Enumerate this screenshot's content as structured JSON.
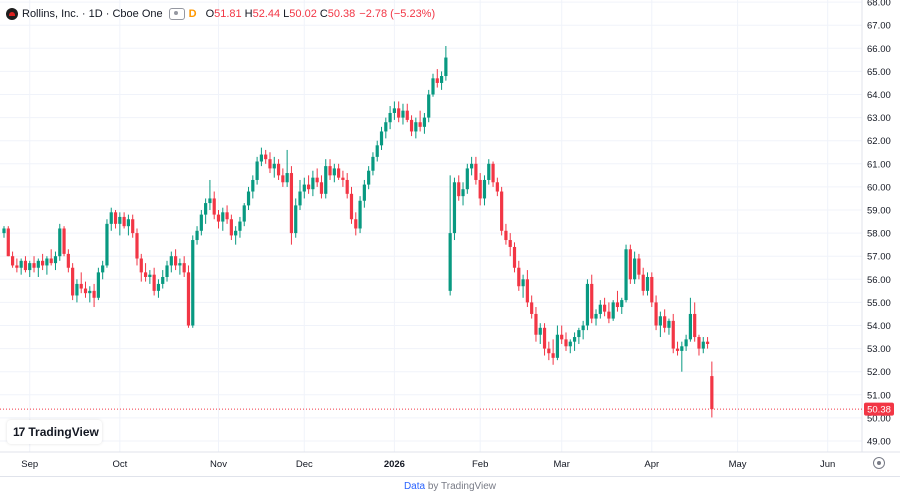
{
  "header": {
    "symbol": "Rollins, Inc. · 1D · Cboe One",
    "badge": "D",
    "o_label": "O",
    "o_value": "51.81",
    "h_label": "H",
    "h_value": "52.44",
    "l_label": "L",
    "l_value": "50.02",
    "c_label": "C",
    "c_value": "50.38",
    "change": "−2.78 (−5.23%)"
  },
  "logo": {
    "mark": "17",
    "text": "TradingView"
  },
  "footer": {
    "data_link": "Data",
    "by_text": "by TradingView"
  },
  "colors": {
    "up": "#089981",
    "down": "#f23645",
    "grid": "#f0f3fa",
    "axis_text": "#131722",
    "last_price_bg": "#f23645"
  },
  "chart_data": {
    "type": "candlestick",
    "y_ticks": [
      "49.00",
      "50.00",
      "51.00",
      "52.00",
      "53.00",
      "54.00",
      "55.00",
      "56.00",
      "57.00",
      "58.00",
      "59.00",
      "60.00",
      "61.00",
      "62.00",
      "63.00",
      "64.00",
      "65.00",
      "66.00",
      "67.00",
      "68.00"
    ],
    "ylim": [
      48.8,
      68.2
    ],
    "x_ticks": [
      {
        "label": "Sep",
        "index": 6
      },
      {
        "label": "Oct",
        "index": 27
      },
      {
        "label": "Nov",
        "index": 50
      },
      {
        "label": "Dec",
        "index": 70
      },
      {
        "label": "2026",
        "index": 91
      },
      {
        "label": "Feb",
        "index": 111
      },
      {
        "label": "Mar",
        "index": 130
      },
      {
        "label": "Apr",
        "index": 151
      },
      {
        "label": "May",
        "index": 171
      },
      {
        "label": "Jun",
        "index": 192
      }
    ],
    "last_price": "50.38",
    "last_close": 50.38,
    "candles": [
      [
        58.0,
        58.3,
        57.8,
        58.2
      ],
      [
        58.2,
        58.3,
        57.0,
        57.0
      ],
      [
        57.0,
        57.2,
        56.5,
        56.6
      ],
      [
        56.6,
        56.9,
        56.3,
        56.5
      ],
      [
        56.5,
        56.9,
        56.2,
        56.8
      ],
      [
        56.8,
        57.0,
        56.3,
        56.4
      ],
      [
        56.4,
        56.8,
        56.1,
        56.7
      ],
      [
        56.7,
        57.0,
        56.3,
        56.5
      ],
      [
        56.5,
        56.9,
        56.1,
        56.8
      ],
      [
        56.8,
        57.1,
        56.4,
        56.6
      ],
      [
        56.6,
        57.0,
        56.2,
        56.9
      ],
      [
        56.9,
        57.3,
        56.6,
        56.7
      ],
      [
        56.7,
        57.2,
        56.4,
        57.0
      ],
      [
        57.0,
        58.4,
        56.8,
        58.2
      ],
      [
        58.2,
        58.3,
        57.0,
        57.1
      ],
      [
        57.1,
        57.3,
        56.3,
        56.5
      ],
      [
        56.5,
        56.7,
        55.1,
        55.3
      ],
      [
        55.3,
        56.0,
        55.0,
        55.8
      ],
      [
        55.8,
        56.3,
        55.4,
        55.6
      ],
      [
        55.6,
        55.9,
        55.2,
        55.4
      ],
      [
        55.4,
        55.7,
        55.0,
        55.5
      ],
      [
        55.5,
        55.8,
        54.8,
        55.2
      ],
      [
        55.2,
        56.5,
        55.1,
        56.3
      ],
      [
        56.3,
        56.8,
        56.0,
        56.6
      ],
      [
        56.6,
        58.6,
        56.5,
        58.4
      ],
      [
        58.4,
        59.1,
        58.1,
        58.9
      ],
      [
        58.9,
        59.0,
        58.2,
        58.4
      ],
      [
        58.4,
        58.9,
        57.9,
        58.7
      ],
      [
        58.7,
        58.9,
        58.2,
        58.3
      ],
      [
        58.3,
        58.8,
        57.9,
        58.6
      ],
      [
        58.6,
        58.8,
        57.8,
        58.0
      ],
      [
        58.0,
        58.2,
        56.6,
        56.9
      ],
      [
        56.9,
        57.1,
        55.9,
        56.3
      ],
      [
        56.3,
        56.7,
        55.9,
        56.1
      ],
      [
        56.1,
        56.4,
        55.8,
        56.2
      ],
      [
        56.2,
        56.5,
        55.3,
        55.5
      ],
      [
        55.5,
        56.0,
        55.2,
        55.8
      ],
      [
        55.8,
        56.4,
        55.6,
        56.1
      ],
      [
        56.1,
        56.8,
        55.9,
        56.6
      ],
      [
        56.6,
        57.2,
        56.3,
        57.0
      ],
      [
        57.0,
        57.3,
        56.4,
        56.6
      ],
      [
        56.6,
        56.9,
        56.2,
        56.7
      ],
      [
        56.7,
        57.0,
        56.1,
        56.3
      ],
      [
        56.3,
        56.6,
        53.9,
        54.0
      ],
      [
        54.0,
        57.9,
        53.9,
        57.7
      ],
      [
        57.7,
        58.3,
        57.5,
        58.1
      ],
      [
        58.1,
        59.0,
        57.9,
        58.8
      ],
      [
        58.8,
        59.5,
        58.4,
        59.3
      ],
      [
        59.3,
        60.3,
        59.0,
        59.5
      ],
      [
        59.5,
        59.8,
        58.6,
        58.8
      ],
      [
        58.8,
        59.0,
        58.2,
        58.5
      ],
      [
        58.5,
        59.1,
        58.1,
        58.9
      ],
      [
        58.9,
        59.2,
        58.4,
        58.6
      ],
      [
        58.6,
        58.8,
        57.7,
        57.9
      ],
      [
        57.9,
        58.3,
        57.5,
        58.1
      ],
      [
        58.1,
        58.7,
        57.8,
        58.5
      ],
      [
        58.5,
        59.3,
        58.3,
        59.2
      ],
      [
        59.2,
        60.0,
        59.0,
        59.8
      ],
      [
        59.8,
        60.5,
        59.5,
        60.3
      ],
      [
        60.3,
        61.3,
        60.1,
        61.1
      ],
      [
        61.1,
        61.7,
        60.9,
        61.4
      ],
      [
        61.4,
        61.6,
        61.0,
        61.2
      ],
      [
        61.2,
        61.5,
        60.6,
        60.8
      ],
      [
        60.8,
        61.3,
        60.4,
        61.0
      ],
      [
        61.0,
        61.2,
        60.3,
        60.5
      ],
      [
        60.5,
        60.8,
        60.0,
        60.2
      ],
      [
        60.2,
        61.6,
        60.0,
        60.6
      ],
      [
        60.6,
        60.9,
        57.5,
        58.0
      ],
      [
        58.0,
        59.5,
        57.8,
        59.2
      ],
      [
        59.2,
        60.3,
        59.0,
        59.8
      ],
      [
        59.8,
        60.4,
        59.5,
        60.1
      ],
      [
        60.1,
        60.5,
        59.7,
        59.9
      ],
      [
        59.9,
        60.7,
        59.6,
        60.4
      ],
      [
        60.4,
        60.8,
        60.0,
        60.2
      ],
      [
        60.2,
        60.5,
        59.5,
        59.7
      ],
      [
        59.7,
        61.2,
        59.5,
        60.9
      ],
      [
        60.9,
        61.2,
        60.3,
        60.5
      ],
      [
        60.5,
        61.0,
        60.2,
        60.8
      ],
      [
        60.8,
        61.0,
        60.3,
        60.4
      ],
      [
        60.4,
        60.7,
        60.0,
        60.3
      ],
      [
        60.3,
        60.6,
        59.5,
        59.7
      ],
      [
        59.7,
        60.0,
        58.4,
        58.6
      ],
      [
        58.6,
        58.9,
        57.9,
        58.2
      ],
      [
        58.2,
        59.6,
        58.0,
        59.4
      ],
      [
        59.4,
        60.3,
        59.1,
        60.1
      ],
      [
        60.1,
        60.9,
        59.9,
        60.7
      ],
      [
        60.7,
        61.5,
        60.5,
        61.3
      ],
      [
        61.3,
        62.0,
        61.1,
        61.8
      ],
      [
        61.8,
        62.6,
        61.6,
        62.4
      ],
      [
        62.4,
        63.0,
        62.1,
        62.8
      ],
      [
        62.8,
        63.5,
        62.5,
        63.2
      ],
      [
        63.2,
        63.7,
        62.9,
        63.4
      ],
      [
        63.4,
        63.7,
        62.8,
        63.0
      ],
      [
        63.0,
        63.6,
        62.7,
        63.3
      ],
      [
        63.3,
        63.6,
        62.8,
        62.9
      ],
      [
        62.9,
        63.1,
        62.2,
        62.4
      ],
      [
        62.4,
        63.0,
        62.1,
        62.8
      ],
      [
        62.8,
        63.3,
        62.4,
        62.6
      ],
      [
        62.6,
        63.2,
        62.3,
        63.0
      ],
      [
        63.0,
        64.2,
        62.8,
        64.0
      ],
      [
        64.0,
        64.9,
        63.9,
        64.7
      ],
      [
        64.7,
        65.1,
        64.3,
        64.5
      ],
      [
        64.5,
        65.0,
        64.2,
        64.8
      ],
      [
        64.8,
        66.1,
        64.6,
        65.6
      ],
      [
        55.5,
        60.5,
        55.3,
        58.0
      ],
      [
        58.0,
        60.4,
        57.7,
        60.2
      ],
      [
        60.2,
        60.5,
        59.4,
        59.6
      ],
      [
        59.6,
        60.2,
        59.2,
        59.9
      ],
      [
        59.9,
        61.0,
        59.7,
        60.8
      ],
      [
        60.8,
        61.3,
        60.5,
        61.0
      ],
      [
        61.0,
        61.3,
        60.1,
        60.3
      ],
      [
        60.3,
        60.6,
        59.2,
        59.5
      ],
      [
        59.5,
        60.5,
        59.2,
        60.3
      ],
      [
        60.3,
        61.2,
        60.1,
        61.0
      ],
      [
        61.0,
        61.1,
        60.0,
        60.2
      ],
      [
        60.2,
        60.4,
        59.6,
        59.8
      ],
      [
        59.8,
        60.0,
        57.9,
        58.1
      ],
      [
        58.1,
        58.4,
        57.5,
        57.7
      ],
      [
        57.7,
        58.0,
        57.0,
        57.4
      ],
      [
        57.4,
        57.6,
        56.3,
        56.5
      ],
      [
        56.5,
        56.8,
        55.5,
        55.7
      ],
      [
        55.7,
        56.2,
        55.2,
        56.0
      ],
      [
        56.0,
        56.4,
        54.8,
        55.0
      ],
      [
        55.0,
        55.3,
        54.3,
        54.5
      ],
      [
        54.5,
        54.8,
        53.3,
        53.6
      ],
      [
        53.6,
        54.1,
        53.2,
        53.9
      ],
      [
        53.9,
        54.1,
        52.7,
        53.0
      ],
      [
        53.0,
        53.3,
        52.5,
        52.8
      ],
      [
        52.8,
        53.4,
        52.3,
        52.6
      ],
      [
        52.6,
        54.0,
        52.5,
        53.6
      ],
      [
        53.6,
        54.0,
        53.2,
        53.4
      ],
      [
        53.4,
        53.7,
        52.9,
        53.1
      ],
      [
        53.1,
        53.4,
        52.8,
        53.3
      ],
      [
        53.3,
        53.7,
        52.9,
        53.5
      ],
      [
        53.5,
        53.9,
        53.2,
        53.8
      ],
      [
        53.8,
        54.2,
        53.4,
        54.0
      ],
      [
        54.0,
        56.0,
        53.8,
        55.8
      ],
      [
        55.8,
        56.2,
        54.1,
        54.3
      ],
      [
        54.3,
        54.7,
        54.0,
        54.5
      ],
      [
        54.5,
        55.1,
        54.3,
        54.9
      ],
      [
        54.9,
        55.2,
        54.4,
        54.6
      ],
      [
        54.6,
        55.0,
        54.1,
        54.3
      ],
      [
        54.3,
        55.1,
        54.2,
        55.0
      ],
      [
        55.0,
        55.5,
        54.6,
        54.8
      ],
      [
        54.8,
        55.2,
        54.5,
        55.1
      ],
      [
        55.1,
        57.5,
        55.0,
        57.3
      ],
      [
        57.3,
        57.5,
        55.8,
        56.0
      ],
      [
        56.0,
        57.2,
        55.8,
        56.9
      ],
      [
        56.9,
        57.1,
        56.0,
        56.2
      ],
      [
        56.2,
        56.5,
        55.3,
        55.5
      ],
      [
        55.5,
        56.3,
        55.3,
        56.1
      ],
      [
        56.1,
        56.3,
        54.8,
        55.0
      ],
      [
        55.0,
        55.3,
        53.8,
        54.0
      ],
      [
        54.0,
        54.6,
        53.5,
        54.4
      ],
      [
        54.4,
        54.7,
        53.7,
        53.9
      ],
      [
        53.9,
        54.3,
        53.6,
        54.2
      ],
      [
        54.2,
        54.5,
        52.8,
        53.0
      ],
      [
        53.0,
        53.3,
        52.7,
        52.9
      ],
      [
        52.9,
        53.3,
        52.0,
        53.1
      ],
      [
        53.1,
        53.6,
        52.9,
        53.4
      ],
      [
        53.4,
        55.2,
        53.3,
        54.5
      ],
      [
        54.5,
        55.0,
        53.3,
        53.5
      ],
      [
        53.5,
        53.6,
        52.7,
        53.0
      ],
      [
        53.0,
        53.5,
        52.8,
        53.3
      ],
      [
        53.3,
        53.5,
        53.0,
        53.2
      ],
      [
        51.81,
        52.44,
        50.02,
        50.38
      ]
    ]
  }
}
